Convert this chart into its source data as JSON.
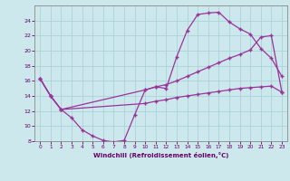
{
  "xlabel": "Windchill (Refroidissement éolien,°C)",
  "bg_color": "#cce8ec",
  "grid_color": "#aad4d8",
  "line_color": "#993399",
  "xlim": [
    -0.5,
    23.5
  ],
  "ylim": [
    8,
    26
  ],
  "xticks": [
    0,
    1,
    2,
    3,
    4,
    5,
    6,
    7,
    8,
    9,
    10,
    11,
    12,
    13,
    14,
    15,
    16,
    17,
    18,
    19,
    20,
    21,
    22,
    23
  ],
  "yticks": [
    8,
    10,
    12,
    14,
    16,
    18,
    20,
    22,
    24
  ],
  "line1_x": [
    0,
    1,
    2,
    3,
    4,
    5,
    6,
    7,
    8,
    9,
    10,
    11,
    12,
    13,
    14,
    15,
    16,
    17,
    18,
    19,
    20,
    21,
    22,
    23
  ],
  "line1_y": [
    16.3,
    14.0,
    12.2,
    11.1,
    9.5,
    8.7,
    8.1,
    7.9,
    8.1,
    11.5,
    14.8,
    15.2,
    15.0,
    19.2,
    22.7,
    24.8,
    25.0,
    25.1,
    23.8,
    22.9,
    22.2,
    20.3,
    19.0,
    16.6
  ],
  "line2_x": [
    0,
    1,
    2,
    10,
    11,
    12,
    13,
    14,
    15,
    16,
    17,
    18,
    19,
    20,
    21,
    22,
    23
  ],
  "line2_y": [
    16.3,
    14.0,
    12.2,
    14.8,
    15.2,
    15.5,
    16.0,
    16.6,
    17.2,
    17.8,
    18.4,
    19.0,
    19.5,
    20.1,
    21.8,
    22.0,
    14.5
  ],
  "line3_x": [
    0,
    1,
    2,
    10,
    11,
    12,
    13,
    14,
    15,
    16,
    17,
    18,
    19,
    20,
    21,
    22,
    23
  ],
  "line3_y": [
    16.3,
    14.0,
    12.2,
    13.0,
    13.3,
    13.5,
    13.8,
    14.0,
    14.2,
    14.4,
    14.6,
    14.8,
    15.0,
    15.1,
    15.2,
    15.3,
    14.5
  ]
}
